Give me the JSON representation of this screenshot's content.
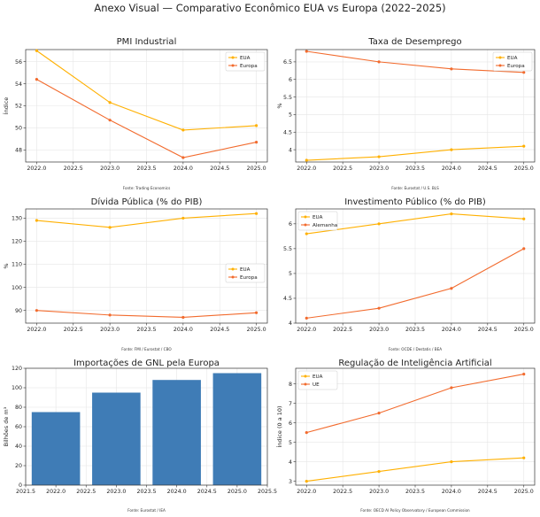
{
  "main_title": "Anexo Visual — Comparativo Econômico EUA vs Europa (2022–2025)",
  "colors": {
    "eua": "#FFB000",
    "europa": "#F26B2E",
    "bar": "#3F7CB6",
    "grid": "#E6E6E6"
  },
  "chart_data": [
    {
      "type": "line",
      "title": "PMI Industrial",
      "xlabel": "",
      "ylabel": "Índice",
      "xlim": [
        2021.85,
        2025.15
      ],
      "ylim": [
        46.9,
        57.1
      ],
      "xticks": [
        "2022.0",
        "2022.5",
        "2023.0",
        "2023.5",
        "2024.0",
        "2024.5",
        "2025.0"
      ],
      "yticks": [
        48,
        50,
        52,
        54,
        56
      ],
      "legend": "top-right",
      "source": "Fonte: Trading Economics",
      "x": [
        2022,
        2023,
        2024,
        2025
      ],
      "series": [
        {
          "name": "EUA",
          "color": "eua",
          "values": [
            57.0,
            52.3,
            49.8,
            50.2
          ]
        },
        {
          "name": "Europa",
          "color": "europa",
          "values": [
            54.4,
            50.7,
            47.3,
            48.7
          ]
        }
      ]
    },
    {
      "type": "line",
      "title": "Taxa de Desemprego",
      "xlabel": "",
      "ylabel": "%",
      "xlim": [
        2021.85,
        2025.15
      ],
      "ylim": [
        3.65,
        6.85
      ],
      "xticks": [
        "2022.0",
        "2022.5",
        "2023.0",
        "2023.5",
        "2024.0",
        "2024.5",
        "2025.0"
      ],
      "yticks": [
        4.0,
        4.5,
        5.0,
        5.5,
        6.0,
        6.5
      ],
      "legend": "top-right",
      "source": "Fonte: Eurostat / U.S. BLS",
      "x": [
        2022,
        2023,
        2024,
        2025
      ],
      "series": [
        {
          "name": "EUA",
          "color": "eua",
          "values": [
            3.7,
            3.8,
            4.0,
            4.1
          ]
        },
        {
          "name": "Europa",
          "color": "europa",
          "values": [
            6.8,
            6.5,
            6.3,
            6.2
          ]
        }
      ]
    },
    {
      "type": "line",
      "title": "Dívida Pública (% do PIB)",
      "xlabel": "",
      "ylabel": "%",
      "xlim": [
        2021.85,
        2025.15
      ],
      "ylim": [
        84.5,
        134
      ],
      "xticks": [
        "2022.0",
        "2022.5",
        "2023.0",
        "2023.5",
        "2024.0",
        "2024.5",
        "2025.0"
      ],
      "yticks": [
        90,
        100,
        110,
        120,
        130
      ],
      "legend": "center-right",
      "source": "Fonte: FMI / Eurostat / CBO",
      "x": [
        2022,
        2023,
        2024,
        2025
      ],
      "series": [
        {
          "name": "EUA",
          "color": "eua",
          "values": [
            129,
            126,
            130,
            132
          ]
        },
        {
          "name": "Europa",
          "color": "europa",
          "values": [
            90,
            88,
            87,
            89
          ]
        }
      ]
    },
    {
      "type": "line",
      "title": "Investimento Público (% do PIB)",
      "xlabel": "",
      "ylabel": "",
      "xlim": [
        2021.85,
        2025.15
      ],
      "ylim": [
        4.0,
        6.3
      ],
      "xticks": [
        "2022.0",
        "2022.5",
        "2023.0",
        "2023.5",
        "2024.0",
        "2024.5",
        "2025.0"
      ],
      "yticks": [
        4.0,
        4.5,
        5.0,
        5.5,
        6.0
      ],
      "legend": "top-left",
      "source": "Fonte: OCDE / Destatis / BEA",
      "x": [
        2022,
        2023,
        2024,
        2025
      ],
      "series": [
        {
          "name": "EUA",
          "color": "eua",
          "values": [
            5.8,
            6.0,
            6.2,
            6.1
          ]
        },
        {
          "name": "Alemanha",
          "color": "europa",
          "values": [
            4.1,
            4.3,
            4.7,
            5.5
          ]
        }
      ]
    },
    {
      "type": "bar",
      "title": "Importações de GNL pela Europa",
      "xlabel": "",
      "ylabel": "Bilhões de m³",
      "xlim": [
        2021.5,
        2025.5
      ],
      "ylim": [
        0,
        120
      ],
      "xticks": [
        "2021.5",
        "2022.0",
        "2022.5",
        "2023.0",
        "2023.5",
        "2024.0",
        "2024.5",
        "2025.0",
        "2025.5"
      ],
      "yticks": [
        0,
        20,
        40,
        60,
        80,
        100,
        120
      ],
      "source": "Fonte: Eurostat / IEA",
      "x": [
        2022,
        2023,
        2024,
        2025
      ],
      "bar_width": 0.8,
      "values": [
        75,
        95,
        108,
        115
      ]
    },
    {
      "type": "line",
      "title": "Regulação de Inteligência Artificial",
      "xlabel": "",
      "ylabel": "Índice (0 a 10)",
      "xlim": [
        2021.85,
        2025.15
      ],
      "ylim": [
        2.8,
        8.8
      ],
      "xticks": [
        "2022.0",
        "2022.5",
        "2023.0",
        "2023.5",
        "2024.0",
        "2024.5",
        "2025.0"
      ],
      "yticks": [
        3,
        4,
        5,
        6,
        7,
        8
      ],
      "legend": "top-left",
      "source": "Fonte: OECD AI Policy Observatory / European Commission",
      "x": [
        2022,
        2023,
        2024,
        2025
      ],
      "series": [
        {
          "name": "EUA",
          "color": "eua",
          "values": [
            3.0,
            3.5,
            4.0,
            4.2
          ]
        },
        {
          "name": "UE",
          "color": "europa",
          "values": [
            5.5,
            6.5,
            7.8,
            8.5
          ]
        }
      ]
    }
  ]
}
